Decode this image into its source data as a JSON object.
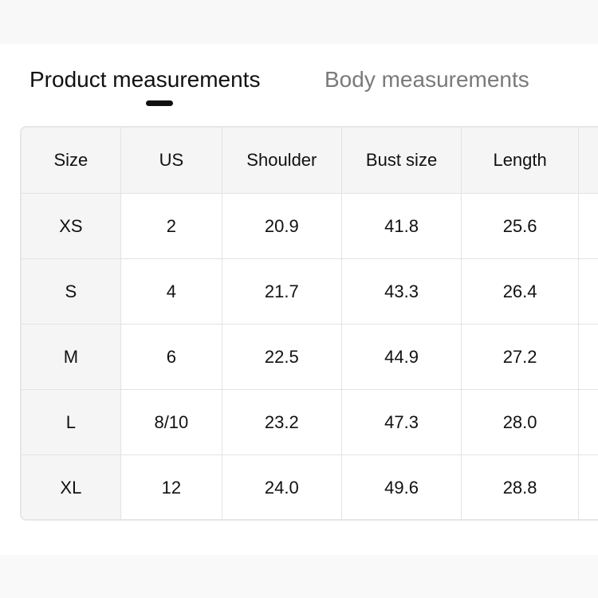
{
  "tabs": [
    {
      "label": "Product measurements",
      "active": true
    },
    {
      "label": "Body measurements",
      "active": false
    }
  ],
  "table": {
    "headers": [
      "Size",
      "US",
      "Shoulder",
      "Bust size",
      "Length",
      ""
    ],
    "rows": [
      [
        "XS",
        "2",
        "20.9",
        "41.8",
        "25.6",
        ""
      ],
      [
        "S",
        "4",
        "21.7",
        "43.3",
        "26.4",
        ""
      ],
      [
        "M",
        "6",
        "22.5",
        "44.9",
        "27.2",
        ""
      ],
      [
        "L",
        "8/10",
        "23.2",
        "47.3",
        "28.0",
        ""
      ],
      [
        "XL",
        "12",
        "24.0",
        "49.6",
        "28.8",
        ""
      ]
    ]
  }
}
